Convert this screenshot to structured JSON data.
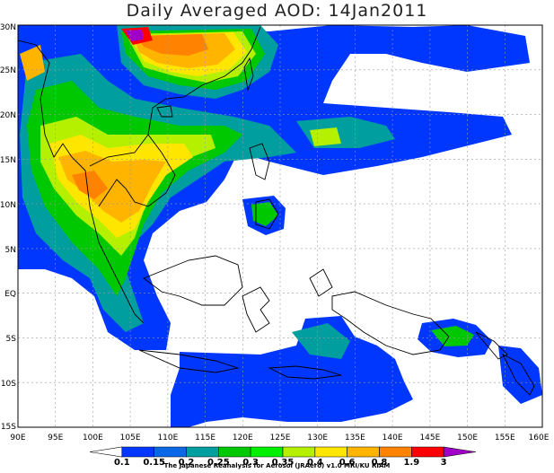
{
  "title": "Daily Averaged AOD: 14Jan2011",
  "credit": "The Japanese Reanalysis for Aerosol (JRAero) v1.0 MRI/KU RIAM",
  "x_ticks": [
    "90E",
    "95E",
    "100E",
    "105E",
    "110E",
    "115E",
    "120E",
    "125E",
    "130E",
    "135E",
    "140E",
    "145E",
    "150E",
    "155E",
    "160E"
  ],
  "y_ticks": [
    "30N",
    "25N",
    "20N",
    "15N",
    "10N",
    "5N",
    "EQ",
    "5S",
    "10S",
    "15S"
  ],
  "colorbar": {
    "labels": [
      "0.1",
      "0.15",
      "0.2",
      "0.25",
      "0.3",
      "0.35",
      "0.4",
      "0.6",
      "0.8",
      "1.9",
      "3"
    ],
    "colors": [
      "#ffffff",
      "#0037ff",
      "#0a68e6",
      "#009e9e",
      "#00c800",
      "#00f000",
      "#b4f000",
      "#ffe600",
      "#ffb400",
      "#ff8200",
      "#ff0000",
      "#a000c8"
    ]
  },
  "map_extent": {
    "lon": [
      90,
      160
    ],
    "lat": [
      -15,
      30
    ]
  }
}
